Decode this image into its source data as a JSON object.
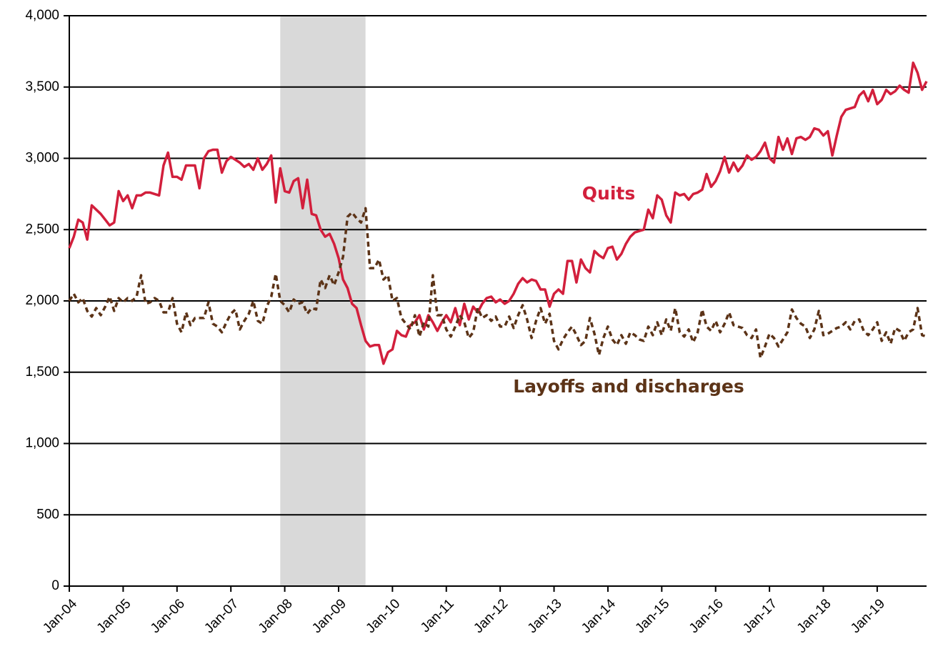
{
  "chart_data": {
    "type": "line",
    "categories": [
      "Jan-04",
      null,
      null,
      null,
      null,
      null,
      null,
      null,
      null,
      null,
      null,
      null,
      "Jan-05",
      null,
      null,
      null,
      null,
      null,
      null,
      null,
      null,
      null,
      null,
      null,
      "Jan-06",
      null,
      null,
      null,
      null,
      null,
      null,
      null,
      null,
      null,
      null,
      null,
      "Jan-07",
      null,
      null,
      null,
      null,
      null,
      null,
      null,
      null,
      null,
      null,
      null,
      "Jan-08",
      null,
      null,
      null,
      null,
      null,
      null,
      null,
      null,
      null,
      null,
      null,
      "Jan-09",
      null,
      null,
      null,
      null,
      null,
      null,
      null,
      null,
      null,
      null,
      null,
      "Jan-10",
      null,
      null,
      null,
      null,
      null,
      null,
      null,
      null,
      null,
      null,
      null,
      "Jan-11",
      null,
      null,
      null,
      null,
      null,
      null,
      null,
      null,
      null,
      null,
      null,
      "Jan-12",
      null,
      null,
      null,
      null,
      null,
      null,
      null,
      null,
      null,
      null,
      null,
      "Jan-13",
      null,
      null,
      null,
      null,
      null,
      null,
      null,
      null,
      null,
      null,
      null,
      "Jan-14",
      null,
      null,
      null,
      null,
      null,
      null,
      null,
      null,
      null,
      null,
      null,
      "Jan-15",
      null,
      null,
      null,
      null,
      null,
      null,
      null,
      null,
      null,
      null,
      null,
      "Jan-16",
      null,
      null,
      null,
      null,
      null,
      null,
      null,
      null,
      null,
      null,
      null,
      "Jan-17",
      null,
      null,
      null,
      null,
      null,
      null,
      null,
      null,
      null,
      null,
      null,
      "Jan-18",
      null,
      null,
      null,
      null,
      null,
      null,
      null,
      null,
      null,
      null,
      null,
      "Jan-19",
      null,
      null,
      null,
      null,
      null,
      null,
      null,
      null,
      null,
      null,
      null
    ],
    "series": [
      {
        "name": "Quits",
        "color": "#d21f3c",
        "line_style": "solid",
        "values": [
          2370,
          2450,
          2570,
          2550,
          2430,
          2670,
          2640,
          2610,
          2570,
          2530,
          2550,
          2770,
          2700,
          2740,
          2650,
          2740,
          2740,
          2760,
          2760,
          2750,
          2740,
          2950,
          3040,
          2870,
          2870,
          2850,
          2950,
          2950,
          2950,
          2790,
          3000,
          3050,
          3060,
          3060,
          2900,
          2980,
          3010,
          2990,
          2970,
          2940,
          2960,
          2920,
          3000,
          2920,
          2960,
          3020,
          2690,
          2930,
          2770,
          2760,
          2840,
          2860,
          2650,
          2850,
          2610,
          2600,
          2500,
          2450,
          2470,
          2400,
          2300,
          2150,
          2090,
          1980,
          1950,
          1830,
          1720,
          1680,
          1690,
          1690,
          1560,
          1640,
          1660,
          1790,
          1760,
          1750,
          1830,
          1850,
          1900,
          1800,
          1900,
          1850,
          1790,
          1850,
          1900,
          1850,
          1950,
          1830,
          1980,
          1870,
          1960,
          1920,
          1980,
          2020,
          2030,
          1990,
          2010,
          1980,
          2000,
          2050,
          2120,
          2160,
          2130,
          2150,
          2140,
          2080,
          2080,
          1960,
          2050,
          2080,
          2050,
          2280,
          2280,
          2130,
          2290,
          2230,
          2200,
          2350,
          2320,
          2300,
          2370,
          2380,
          2290,
          2330,
          2400,
          2450,
          2480,
          2490,
          2500,
          2640,
          2580,
          2740,
          2710,
          2600,
          2550,
          2760,
          2740,
          2750,
          2710,
          2750,
          2760,
          2780,
          2890,
          2800,
          2840,
          2910,
          3010,
          2900,
          2970,
          2910,
          2950,
          3020,
          2990,
          3010,
          3050,
          3110,
          3000,
          2970,
          3150,
          3060,
          3140,
          3030,
          3140,
          3150,
          3130,
          3150,
          3210,
          3200,
          3160,
          3190,
          3020,
          3160,
          3290,
          3340,
          3350,
          3360,
          3440,
          3470,
          3400,
          3480,
          3380,
          3410,
          3480,
          3450,
          3470,
          3510,
          3480,
          3460,
          3670,
          3600,
          3480,
          3540
        ]
      },
      {
        "name": "Layoffs and discharges",
        "color": "#5c3317",
        "line_style": "dashed",
        "values": [
          2000,
          2050,
          1990,
          2020,
          1930,
          1890,
          1950,
          1900,
          1960,
          2030,
          1930,
          2020,
          1990,
          2020,
          2000,
          2030,
          2180,
          1980,
          1990,
          2020,
          2000,
          1920,
          1920,
          2020,
          1840,
          1780,
          1920,
          1830,
          1880,
          1880,
          1880,
          1990,
          1840,
          1820,
          1780,
          1850,
          1910,
          1940,
          1800,
          1860,
          1910,
          2000,
          1860,
          1840,
          1960,
          2030,
          2190,
          2000,
          1970,
          1920,
          2010,
          1980,
          1990,
          1910,
          1950,
          1940,
          2150,
          2090,
          2180,
          2110,
          2200,
          2310,
          2590,
          2620,
          2580,
          2550,
          2650,
          2230,
          2230,
          2290,
          2150,
          2180,
          2000,
          2020,
          1880,
          1840,
          1800,
          1900,
          1750,
          1850,
          1820,
          2180,
          1900,
          1900,
          1800,
          1750,
          1820,
          1900,
          1850,
          1740,
          1780,
          1950,
          1880,
          1900,
          1860,
          1890,
          1820,
          1820,
          1890,
          1810,
          1900,
          1970,
          1870,
          1740,
          1860,
          1950,
          1840,
          1910,
          1720,
          1660,
          1730,
          1780,
          1820,
          1760,
          1690,
          1720,
          1880,
          1770,
          1620,
          1740,
          1820,
          1730,
          1690,
          1760,
          1700,
          1780,
          1760,
          1730,
          1720,
          1820,
          1760,
          1850,
          1760,
          1870,
          1790,
          1950,
          1780,
          1750,
          1800,
          1710,
          1780,
          1940,
          1820,
          1790,
          1860,
          1780,
          1840,
          1920,
          1830,
          1820,
          1810,
          1760,
          1740,
          1800,
          1600,
          1680,
          1770,
          1740,
          1680,
          1730,
          1780,
          1940,
          1880,
          1840,
          1820,
          1740,
          1800,
          1930,
          1760,
          1770,
          1790,
          1810,
          1820,
          1850,
          1800,
          1860,
          1870,
          1790,
          1760,
          1800,
          1850,
          1720,
          1780,
          1700,
          1810,
          1790,
          1720,
          1780,
          1800,
          1950,
          1760,
          1750
        ]
      }
    ],
    "recession": {
      "start": 47,
      "end": 66,
      "color": "#d9d9d9"
    },
    "ylim": [
      0,
      4000
    ],
    "yticks": [
      0,
      500,
      {
        "value": 1000,
        "label": "1,000"
      },
      {
        "value": 1500,
        "label": "1,500"
      },
      {
        "value": 2000,
        "label": "2,000"
      },
      {
        "value": 2500,
        "label": "2,500"
      },
      {
        "value": 3000,
        "label": "3,000"
      },
      {
        "value": 3500,
        "label": "3,500"
      },
      {
        "value": 4000,
        "label": "4,000"
      }
    ],
    "grid": true
  }
}
